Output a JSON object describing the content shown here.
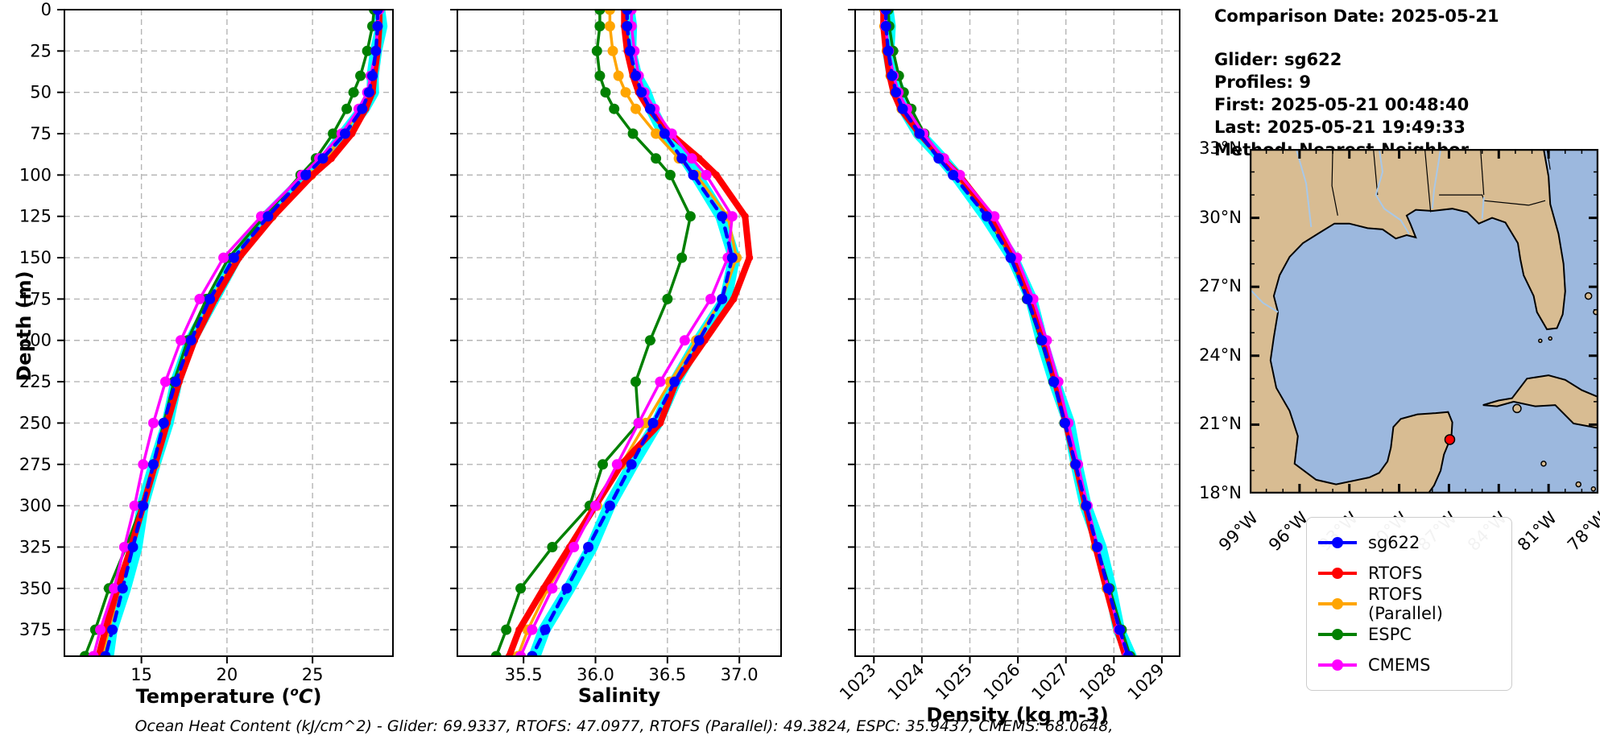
{
  "info": {
    "date_line": "Comparison Date: 2025-05-21",
    "glider_line": "Glider: sg622",
    "profiles_line": "Profiles: 9",
    "first_line": "First: 2025-05-21 00:48:40",
    "last_line": "Last: 2025-05-21 19:49:33",
    "method_line": "Method: Nearest-Neighbor"
  },
  "footer": {
    "ohc": "Ocean Heat Content (kJ/cm^2) - Glider: 69.9337,  RTOFS: 47.0977,  RTOFS (Parallel): 49.3824,  ESPC: 35.9437,  CMEMS: 68.0648,"
  },
  "legend": {
    "items": [
      {
        "label": "sg622",
        "color": "#0000ff"
      },
      {
        "label": "RTOFS",
        "color": "#ff0000"
      },
      {
        "label": "RTOFS (Parallel)",
        "color": "#ffa500"
      },
      {
        "label": "ESPC",
        "color": "#008000"
      },
      {
        "label": "CMEMS",
        "color": "#ff00ff"
      }
    ]
  },
  "map": {
    "lat_labels": [
      "33°N",
      "30°N",
      "27°N",
      "24°N",
      "21°N",
      "18°N"
    ],
    "lon_labels": [
      "99°W",
      "96°W",
      "93°W",
      "90°W",
      "87°W",
      "84°W",
      "81°W",
      "78°W"
    ],
    "land_color": "#d8bc92",
    "ocean_color": "#9cb8de",
    "river_color": "#a8c8e8",
    "marker_color": "#ff0000"
  },
  "chart_data": {
    "type": "line",
    "ylabel": "Depth (m)",
    "ylim": [
      0,
      391
    ],
    "yticks": [
      0,
      25,
      50,
      75,
      100,
      125,
      150,
      175,
      200,
      225,
      250,
      275,
      300,
      325,
      350,
      375
    ],
    "ytick_labels": [
      "0",
      "25",
      "50",
      "75",
      "100",
      "125",
      "150",
      "175",
      "200",
      "225",
      "250",
      "275",
      "300",
      "325",
      "350",
      "375"
    ],
    "depths": [
      0,
      10,
      25,
      40,
      50,
      60,
      75,
      90,
      100,
      125,
      150,
      175,
      200,
      225,
      250,
      275,
      300,
      325,
      350,
      375,
      391
    ],
    "band": {
      "series": "sg622",
      "color": "#00ffff"
    },
    "panels": [
      {
        "key": "temperature",
        "xlabel": "Temperature (°C)",
        "label_parts": {
          "pre": "Temperature (",
          "sup": "o",
          "var": "C",
          "post": ")"
        },
        "xlim": [
          10.5,
          29.7
        ],
        "xticks": [
          15,
          20,
          25
        ],
        "tick_labels": [
          "15",
          "20",
          "25"
        ],
        "rotate_ticks": false
      },
      {
        "key": "salinity",
        "xlabel": "Salinity",
        "xlim": [
          35.04,
          37.29
        ],
        "xticks": [
          35.5,
          36.0,
          36.5,
          37.0
        ],
        "tick_labels": [
          "35.5",
          "36.0",
          "36.5",
          "37.0"
        ],
        "rotate_ticks": false
      },
      {
        "key": "density",
        "xlabel": "Density (kg m-3)",
        "xlim": [
          1022.61,
          1029.37
        ],
        "xticks": [
          1023,
          1024,
          1025,
          1026,
          1027,
          1028,
          1029
        ],
        "tick_labels": [
          "1023",
          "1024",
          "1025",
          "1026",
          "1027",
          "1028",
          "1029"
        ],
        "rotate_ticks": true
      }
    ],
    "series": [
      {
        "name": "sg622",
        "color": "#0000ff",
        "style": "dashed",
        "lw": 4.5,
        "marker_r": 6.5,
        "temperature": [
          28.8,
          28.8,
          28.7,
          28.5,
          28.3,
          27.9,
          26.9,
          25.6,
          24.6,
          22.4,
          20.4,
          19.0,
          17.9,
          17.0,
          16.3,
          15.7,
          15.1,
          14.5,
          13.9,
          13.3,
          12.9
        ],
        "salinity": [
          36.22,
          36.22,
          36.24,
          36.28,
          36.32,
          36.38,
          36.48,
          36.6,
          36.68,
          36.88,
          36.95,
          36.88,
          36.72,
          36.55,
          36.4,
          36.25,
          36.1,
          35.95,
          35.8,
          35.65,
          35.56
        ],
        "density": [
          1023.25,
          1023.25,
          1023.3,
          1023.38,
          1023.46,
          1023.6,
          1023.95,
          1024.35,
          1024.65,
          1025.35,
          1025.85,
          1026.2,
          1026.5,
          1026.75,
          1026.98,
          1027.2,
          1027.42,
          1027.65,
          1027.88,
          1028.12,
          1028.3
        ]
      },
      {
        "name": "RTOFS",
        "color": "#ff0000",
        "style": "solid",
        "lw": 8,
        "marker_r": 4.5,
        "temperature": [
          28.9,
          28.9,
          28.8,
          28.6,
          28.5,
          28.1,
          27.3,
          26.1,
          25.0,
          22.7,
          20.7,
          19.3,
          18.1,
          17.2,
          16.5,
          15.8,
          15.1,
          14.4,
          13.6,
          12.9,
          12.5
        ],
        "salinity": [
          36.2,
          36.2,
          36.22,
          36.26,
          36.3,
          36.37,
          36.52,
          36.72,
          36.84,
          37.04,
          37.07,
          36.96,
          36.76,
          36.56,
          36.45,
          36.18,
          36.0,
          35.82,
          35.64,
          35.47,
          35.4
        ],
        "density": [
          1023.2,
          1023.2,
          1023.25,
          1023.33,
          1023.41,
          1023.56,
          1023.95,
          1024.42,
          1024.77,
          1025.45,
          1025.92,
          1026.25,
          1026.53,
          1026.78,
          1027.0,
          1027.21,
          1027.41,
          1027.62,
          1027.84,
          1028.07,
          1028.24
        ]
      },
      {
        "name": "RTOFS (Parallel)",
        "color": "#ffa500",
        "style": "solid",
        "lw": 3.5,
        "marker_r": 6.5,
        "temperature": [
          28.8,
          28.8,
          28.7,
          28.5,
          28.3,
          27.8,
          26.8,
          25.8,
          24.9,
          22.6,
          20.5,
          19.1,
          18.0,
          17.1,
          16.4,
          15.8,
          15.1,
          14.4,
          13.7,
          13.1,
          12.7
        ],
        "salinity": [
          36.1,
          36.1,
          36.12,
          36.16,
          36.21,
          36.28,
          36.42,
          36.58,
          36.7,
          36.92,
          36.98,
          36.88,
          36.7,
          36.52,
          36.35,
          36.18,
          36.01,
          35.84,
          35.67,
          35.53,
          35.46
        ],
        "density": [
          1023.22,
          1023.22,
          1023.27,
          1023.35,
          1023.44,
          1023.58,
          1023.94,
          1024.37,
          1024.69,
          1025.38,
          1025.87,
          1026.21,
          1026.5,
          1026.76,
          1026.98,
          1027.19,
          1027.4,
          1027.62,
          1027.85,
          1028.09,
          1028.27
        ]
      },
      {
        "name": "ESPC",
        "color": "#008000",
        "style": "solid",
        "lw": 3.5,
        "marker_r": 6.5,
        "temperature": [
          28.6,
          28.5,
          28.2,
          27.8,
          27.4,
          27.0,
          26.2,
          25.2,
          24.3,
          22.2,
          20.1,
          18.8,
          17.7,
          16.9,
          16.3,
          15.7,
          15.0,
          14.1,
          13.1,
          12.3,
          11.7
        ],
        "salinity": [
          36.03,
          36.03,
          36.01,
          36.03,
          36.07,
          36.13,
          36.26,
          36.42,
          36.52,
          36.66,
          36.6,
          36.5,
          36.38,
          36.28,
          36.3,
          36.05,
          35.96,
          35.7,
          35.48,
          35.38,
          35.31
        ],
        "density": [
          1023.3,
          1023.32,
          1023.4,
          1023.52,
          1023.62,
          1023.78,
          1024.05,
          1024.43,
          1024.71,
          1025.36,
          1025.86,
          1026.19,
          1026.48,
          1026.74,
          1026.97,
          1027.19,
          1027.41,
          1027.65,
          1027.91,
          1028.16,
          1028.34
        ]
      },
      {
        "name": "CMEMS",
        "color": "#ff00ff",
        "style": "solid",
        "lw": 3.5,
        "marker_r": 6.5,
        "temperature": [
          28.9,
          28.8,
          28.7,
          28.4,
          28.2,
          27.7,
          26.7,
          25.4,
          24.4,
          22.0,
          19.8,
          18.4,
          17.3,
          16.4,
          15.7,
          15.1,
          14.6,
          14.0,
          13.4,
          12.6,
          12.2
        ],
        "salinity": [
          36.25,
          36.25,
          36.27,
          36.3,
          36.34,
          36.41,
          36.53,
          36.67,
          36.77,
          36.95,
          36.92,
          36.8,
          36.62,
          36.45,
          36.3,
          36.15,
          36.0,
          35.85,
          35.7,
          35.56,
          35.48
        ],
        "density": [
          1023.24,
          1023.24,
          1023.31,
          1023.41,
          1023.51,
          1023.69,
          1024.03,
          1024.46,
          1024.79,
          1025.51,
          1025.98,
          1026.32,
          1026.6,
          1026.84,
          1027.05,
          1027.25,
          1027.45,
          1027.66,
          1027.88,
          1028.1,
          1028.28
        ]
      }
    ]
  }
}
